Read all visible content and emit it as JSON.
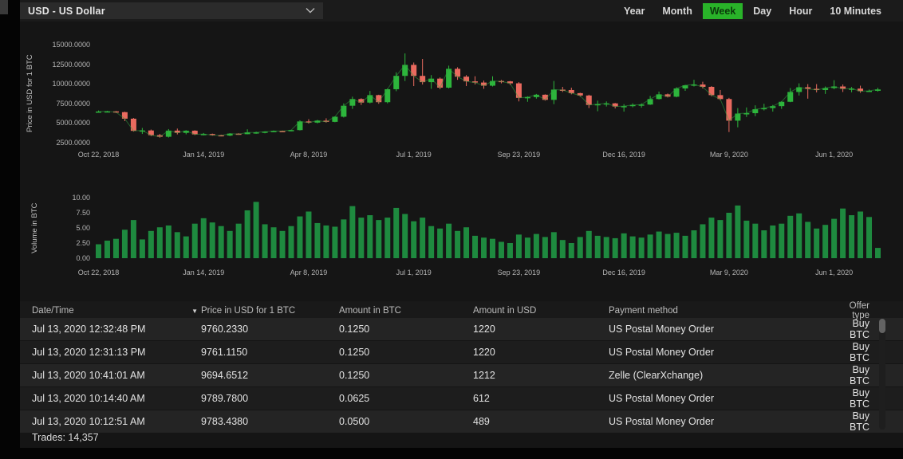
{
  "header": {
    "currency_selector": {
      "value": "USD  -  US Dollar"
    },
    "timeframes": [
      {
        "label": "Year",
        "active": false
      },
      {
        "label": "Month",
        "active": false
      },
      {
        "label": "Week",
        "active": true
      },
      {
        "label": "Day",
        "active": false
      },
      {
        "label": "Hour",
        "active": false
      },
      {
        "label": "10 Minutes",
        "active": false
      }
    ],
    "accent_color": "#29b329"
  },
  "chart_data": [
    {
      "type": "candlestick",
      "ylabel": "Price in USD for 1 BTC",
      "ylim": [
        1800,
        15800
      ],
      "yticks": [
        {
          "v": 15000,
          "label": "15000.0000"
        },
        {
          "v": 12500,
          "label": "12500.0000"
        },
        {
          "v": 10000,
          "label": "10000.0000"
        },
        {
          "v": 7500,
          "label": "7500.0000"
        },
        {
          "v": 5000,
          "label": "5000.0000"
        },
        {
          "v": 2500,
          "label": "2500.0000"
        }
      ],
      "xticks": [
        {
          "i": 0,
          "label": "Oct 22, 2018"
        },
        {
          "i": 12,
          "label": "Jan 14, 2019"
        },
        {
          "i": 24,
          "label": "Apr 8, 2019"
        },
        {
          "i": 36,
          "label": "Jul 1, 2019"
        },
        {
          "i": 48,
          "label": "Sep 23, 2019"
        },
        {
          "i": 60,
          "label": "Dec 16, 2019"
        },
        {
          "i": 72,
          "label": "Mar 9, 2020"
        },
        {
          "i": 84,
          "label": "Jun 1, 2020"
        }
      ],
      "colors": {
        "up": "#2db53c",
        "down": "#ea6a5f",
        "close_line": "#2f9e3f"
      },
      "candles": [
        [
          6450,
          6600,
          6320,
          6470
        ],
        [
          6470,
          6560,
          6380,
          6490
        ],
        [
          6490,
          6540,
          6300,
          6390
        ],
        [
          6390,
          6450,
          5250,
          5560
        ],
        [
          5560,
          5650,
          3920,
          4010
        ],
        [
          4010,
          4380,
          3620,
          4060
        ],
        [
          4060,
          4180,
          3340,
          3460
        ],
        [
          3460,
          3620,
          3140,
          3260
        ],
        [
          3260,
          4240,
          3160,
          4040
        ],
        [
          4040,
          4300,
          3560,
          3760
        ],
        [
          3760,
          4090,
          3570,
          4030
        ],
        [
          4030,
          4090,
          3470,
          3560
        ],
        [
          3560,
          3740,
          3440,
          3610
        ],
        [
          3610,
          3660,
          3390,
          3460
        ],
        [
          3460,
          3520,
          3310,
          3410
        ],
        [
          3410,
          3710,
          3340,
          3660
        ],
        [
          3660,
          3700,
          3510,
          3590
        ],
        [
          3590,
          4210,
          3570,
          3810
        ],
        [
          3810,
          3910,
          3640,
          3820
        ],
        [
          3820,
          3960,
          3700,
          3910
        ],
        [
          3910,
          4060,
          3850,
          3990
        ],
        [
          3990,
          4050,
          3890,
          3980
        ],
        [
          3980,
          4120,
          3940,
          4110
        ],
        [
          4110,
          5360,
          4060,
          5210
        ],
        [
          5210,
          5490,
          4940,
          5060
        ],
        [
          5060,
          5410,
          4960,
          5310
        ],
        [
          5310,
          5610,
          5060,
          5160
        ],
        [
          5160,
          5860,
          5110,
          5810
        ],
        [
          5810,
          7510,
          5710,
          7210
        ],
        [
          7210,
          8360,
          6810,
          8060
        ],
        [
          8060,
          8160,
          7310,
          7610
        ],
        [
          7610,
          9090,
          7510,
          8560
        ],
        [
          8560,
          8610,
          7460,
          7660
        ],
        [
          7660,
          9410,
          7510,
          9310
        ],
        [
          9310,
          11460,
          9060,
          11010
        ],
        [
          11010,
          13870,
          10360,
          12410
        ],
        [
          12410,
          12710,
          9710,
          11010
        ],
        [
          11010,
          13160,
          9910,
          10210
        ],
        [
          10210,
          11110,
          9360,
          10660
        ],
        [
          10660,
          10810,
          9310,
          9510
        ],
        [
          9510,
          12310,
          9410,
          11910
        ],
        [
          11910,
          12110,
          10510,
          10910
        ],
        [
          10910,
          11110,
          9710,
          10310
        ],
        [
          10310,
          10960,
          9910,
          10160
        ],
        [
          10160,
          10410,
          9360,
          9760
        ],
        [
          9760,
          10960,
          9660,
          10360
        ],
        [
          10360,
          10490,
          10060,
          10310
        ],
        [
          10310,
          10360,
          9860,
          10060
        ],
        [
          10060,
          10210,
          7760,
          8210
        ],
        [
          8210,
          8410,
          7710,
          8310
        ],
        [
          8310,
          8710,
          8110,
          8610
        ],
        [
          8610,
          8660,
          7860,
          7960
        ],
        [
          7960,
          10360,
          7410,
          9260
        ],
        [
          9260,
          9610,
          8960,
          9210
        ],
        [
          9210,
          9510,
          8660,
          8810
        ],
        [
          8810,
          8860,
          8360,
          8510
        ],
        [
          8510,
          8610,
          6910,
          7310
        ],
        [
          7310,
          7860,
          6510,
          7410
        ],
        [
          7410,
          7760,
          7110,
          7510
        ],
        [
          7510,
          7560,
          6860,
          7110
        ],
        [
          7110,
          7410,
          6460,
          7160
        ],
        [
          7160,
          7510,
          7010,
          7310
        ],
        [
          7310,
          7510,
          6960,
          7360
        ],
        [
          7360,
          8460,
          7310,
          8060
        ],
        [
          8060,
          9010,
          8010,
          8660
        ],
        [
          8660,
          8760,
          8260,
          8360
        ],
        [
          8360,
          9560,
          8280,
          9410
        ],
        [
          9410,
          9860,
          9110,
          9810
        ],
        [
          9810,
          10510,
          9660,
          9910
        ],
        [
          9910,
          10260,
          9410,
          9610
        ],
        [
          9610,
          9710,
          8410,
          8560
        ],
        [
          8560,
          9210,
          7910,
          8060
        ],
        [
          8060,
          8210,
          3860,
          5310
        ],
        [
          5310,
          6910,
          4460,
          6210
        ],
        [
          6210,
          6990,
          5780,
          6260
        ],
        [
          6260,
          7260,
          5880,
          6760
        ],
        [
          6760,
          7460,
          6610,
          6910
        ],
        [
          6910,
          7310,
          6460,
          7160
        ],
        [
          7160,
          7790,
          6810,
          7710
        ],
        [
          7710,
          9460,
          7660,
          8960
        ],
        [
          8960,
          10060,
          8510,
          9560
        ],
        [
          9560,
          9960,
          8110,
          9360
        ],
        [
          9360,
          9960,
          8910,
          9210
        ],
        [
          9210,
          9660,
          8710,
          9460
        ],
        [
          9460,
          10460,
          9310,
          9660
        ],
        [
          9660,
          9910,
          8960,
          9360
        ],
        [
          9360,
          9600,
          8920,
          9390
        ],
        [
          9390,
          9760,
          8860,
          9060
        ],
        [
          9060,
          9260,
          8960,
          9110
        ],
        [
          9110,
          9490,
          9010,
          9280
        ]
      ]
    },
    {
      "type": "bar",
      "ylabel": "Volume in BTC",
      "ylim": [
        0,
        10.5
      ],
      "yticks": [
        {
          "v": 10,
          "label": "10.00"
        },
        {
          "v": 7.5,
          "label": "7.50"
        },
        {
          "v": 5,
          "label": "5.00"
        },
        {
          "v": 2.5,
          "label": "2.50"
        },
        {
          "v": 0,
          "label": "0.00"
        }
      ],
      "bar_color": "#1e8a3f",
      "values": [
        2.3,
        2.9,
        3.2,
        4.7,
        6.3,
        3.1,
        4.5,
        5.1,
        5.4,
        4.3,
        3.6,
        5.7,
        6.6,
        5.9,
        5.3,
        4.5,
        5.7,
        7.9,
        9.3,
        5.6,
        5.1,
        4.5,
        5.3,
        6.9,
        7.7,
        5.8,
        5.4,
        5.2,
        6.4,
        8.6,
        6.7,
        7.1,
        6.3,
        6.7,
        8.3,
        7.3,
        6.1,
        6.7,
        5.3,
        4.9,
        5.7,
        4.5,
        5.1,
        3.7,
        3.4,
        3.2,
        2.7,
        2.5,
        3.9,
        3.4,
        4.0,
        3.5,
        4.3,
        3.0,
        2.5,
        3.5,
        4.5,
        3.7,
        3.5,
        3.3,
        4.1,
        3.6,
        3.4,
        3.9,
        4.4,
        4.0,
        4.2,
        3.7,
        4.6,
        5.6,
        6.7,
        6.3,
        7.5,
        8.7,
        6.2,
        5.7,
        4.6,
        5.4,
        5.7,
        7.0,
        7.4,
        6.0,
        4.9,
        5.5,
        6.5,
        8.2,
        7.1,
        7.7,
        6.8,
        1.7
      ]
    }
  ],
  "table": {
    "columns": [
      "Date/Time",
      "Price in USD for 1 BTC",
      "Amount in BTC",
      "Amount in USD",
      "Payment method",
      "Offer type"
    ],
    "sort": {
      "column": "Date/Time",
      "direction": "desc",
      "glyph": "▼"
    },
    "rows": [
      [
        "Jul 13, 2020 12:32:48 PM",
        "9760.2330",
        "0.1250",
        "1220",
        "US Postal Money Order",
        "Buy BTC"
      ],
      [
        "Jul 13, 2020 12:31:13 PM",
        "9761.1150",
        "0.1250",
        "1220",
        "US Postal Money Order",
        "Buy BTC"
      ],
      [
        "Jul 13, 2020 10:41:01 AM",
        "9694.6512",
        "0.1250",
        "1212",
        "Zelle (ClearXchange)",
        "Buy BTC"
      ],
      [
        "Jul 13, 2020 10:14:40 AM",
        "9789.7800",
        "0.0625",
        "612",
        "US Postal Money Order",
        "Buy BTC"
      ],
      [
        "Jul 13, 2020 10:12:51 AM",
        "9783.4380",
        "0.0500",
        "489",
        "US Postal Money Order",
        "Buy BTC"
      ]
    ]
  },
  "footer": {
    "trades_label": "Trades: 14,357"
  }
}
